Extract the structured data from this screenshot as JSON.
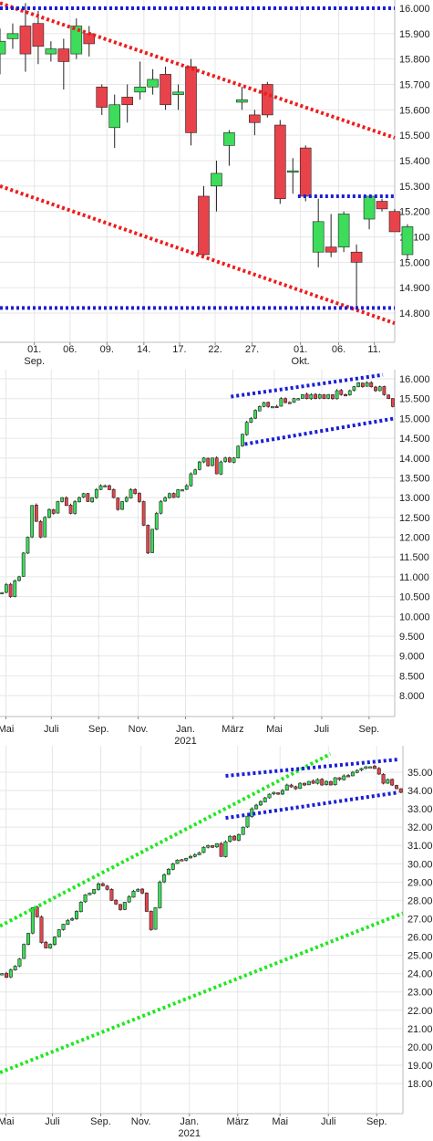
{
  "colors": {
    "up": "#3ddc5a",
    "down": "#e8434b",
    "wick": "#222222",
    "grid": "#e6e6e6",
    "trend_red": "#ee1c1c",
    "trend_blue": "#1a1fd6",
    "trend_green": "#22e622",
    "axis_text": "#222222"
  },
  "chart_data": [
    {
      "type": "candlestick",
      "title": "",
      "yticks": [
        "16.000",
        "15.900",
        "15.800",
        "15.700",
        "15.600",
        "15.500",
        "15.400",
        "15.300",
        "15.200",
        "15.100",
        "15.000",
        "14.900",
        "14.800"
      ],
      "ylim": [
        14.74,
        16.04
      ],
      "xlim": [
        0,
        31
      ],
      "xticks": [
        {
          "i": 2.7,
          "label": "01.",
          "sub": "Sep."
        },
        {
          "i": 5.5,
          "label": "06.",
          "sub": ""
        },
        {
          "i": 8.4,
          "label": "09.",
          "sub": ""
        },
        {
          "i": 11.3,
          "label": "14.",
          "sub": ""
        },
        {
          "i": 14.1,
          "label": "17.",
          "sub": ""
        },
        {
          "i": 16.9,
          "label": "22.",
          "sub": ""
        },
        {
          "i": 19.8,
          "label": "27.",
          "sub": ""
        },
        {
          "i": 23.6,
          "label": "01.",
          "sub": "Okt."
        },
        {
          "i": 26.6,
          "label": "06.",
          "sub": ""
        },
        {
          "i": 29.4,
          "label": "11.",
          "sub": ""
        }
      ],
      "candles": [
        {
          "o": 15.82,
          "h": 15.92,
          "l": 15.74,
          "c": 15.87
        },
        {
          "o": 15.88,
          "h": 15.94,
          "l": 15.84,
          "c": 15.9
        },
        {
          "o": 15.93,
          "h": 16.02,
          "l": 15.75,
          "c": 15.82
        },
        {
          "o": 15.94,
          "h": 15.99,
          "l": 15.78,
          "c": 15.85
        },
        {
          "o": 15.82,
          "h": 15.87,
          "l": 15.79,
          "c": 15.84
        },
        {
          "o": 15.84,
          "h": 15.88,
          "l": 15.68,
          "c": 15.79
        },
        {
          "o": 15.82,
          "h": 15.96,
          "l": 15.8,
          "c": 15.93
        },
        {
          "o": 15.9,
          "h": 15.93,
          "l": 15.81,
          "c": 15.86
        },
        {
          "o": 15.69,
          "h": 15.7,
          "l": 15.58,
          "c": 15.61
        },
        {
          "o": 15.53,
          "h": 15.66,
          "l": 15.45,
          "c": 15.62
        },
        {
          "o": 15.65,
          "h": 15.7,
          "l": 15.55,
          "c": 15.62
        },
        {
          "o": 15.67,
          "h": 15.79,
          "l": 15.64,
          "c": 15.69
        },
        {
          "o": 15.69,
          "h": 15.76,
          "l": 15.66,
          "c": 15.72
        },
        {
          "o": 15.74,
          "h": 15.77,
          "l": 15.6,
          "c": 15.62
        },
        {
          "o": 15.66,
          "h": 15.7,
          "l": 15.6,
          "c": 15.67
        },
        {
          "o": 15.77,
          "h": 15.8,
          "l": 15.46,
          "c": 15.51
        },
        {
          "o": 15.26,
          "h": 15.3,
          "l": 15.02,
          "c": 15.03
        },
        {
          "o": 15.3,
          "h": 15.4,
          "l": 15.2,
          "c": 15.35
        },
        {
          "o": 15.46,
          "h": 15.52,
          "l": 15.38,
          "c": 15.51
        },
        {
          "o": 15.63,
          "h": 15.69,
          "l": 15.6,
          "c": 15.64
        },
        {
          "o": 15.58,
          "h": 15.6,
          "l": 15.5,
          "c": 15.55
        },
        {
          "o": 15.7,
          "h": 15.71,
          "l": 15.57,
          "c": 15.58
        },
        {
          "o": 15.54,
          "h": 15.56,
          "l": 15.23,
          "c": 15.25
        },
        {
          "o": 15.36,
          "h": 15.41,
          "l": 15.27,
          "c": 15.36
        },
        {
          "o": 15.45,
          "h": 15.46,
          "l": 15.24,
          "c": 15.26
        },
        {
          "o": 15.04,
          "h": 15.25,
          "l": 14.98,
          "c": 15.16
        },
        {
          "o": 15.06,
          "h": 15.19,
          "l": 15.02,
          "c": 15.04
        },
        {
          "o": 15.06,
          "h": 15.2,
          "l": 15.04,
          "c": 15.19
        },
        {
          "o": 15.04,
          "h": 15.07,
          "l": 14.82,
          "c": 15.0
        },
        {
          "o": 15.17,
          "h": 15.26,
          "l": 15.13,
          "c": 15.26
        },
        {
          "o": 15.24,
          "h": 15.25,
          "l": 15.2,
          "c": 15.21
        },
        {
          "o": 15.2,
          "h": 15.21,
          "l": 15.12,
          "c": 15.12
        },
        {
          "o": 15.03,
          "h": 15.15,
          "l": 15.01,
          "c": 15.14
        }
      ],
      "trendlines": [
        {
          "color": "trend_red",
          "points": [
            [
              0,
              16.02
            ],
            [
              31,
              15.49
            ]
          ]
        },
        {
          "color": "trend_red",
          "points": [
            [
              0,
              15.3
            ],
            [
              31,
              14.76
            ]
          ]
        },
        {
          "color": "trend_blue",
          "points": [
            [
              0,
              16.0
            ],
            [
              31,
              16.0
            ]
          ]
        },
        {
          "color": "trend_blue",
          "points": [
            [
              0,
              14.82
            ],
            [
              31,
              14.82
            ]
          ]
        },
        {
          "color": "trend_blue",
          "points": [
            [
              23.4,
              15.26
            ],
            [
              31,
              15.26
            ]
          ]
        }
      ]
    },
    {
      "type": "candlestick",
      "title": "",
      "yticks": [
        "16.000",
        "15.500",
        "15.000",
        "14.500",
        "14.000",
        "13.500",
        "13.000",
        "12.500",
        "12.000",
        "11.500",
        "11.000",
        "10.500",
        "10.000",
        "9.500",
        "9.000",
        "8.500",
        "8.000"
      ],
      "ylim": [
        7.8,
        16.15
      ],
      "xlim": [
        0,
        100
      ],
      "xticks": [
        {
          "i": 1.5,
          "label": "Mai",
          "sub": ""
        },
        {
          "i": 13.0,
          "label": "Juli",
          "sub": ""
        },
        {
          "i": 25.0,
          "label": "Sep.",
          "sub": ""
        },
        {
          "i": 35.0,
          "label": "Nov.",
          "sub": ""
        },
        {
          "i": 47.0,
          "label": "Jan.",
          "sub": "2021"
        },
        {
          "i": 59.0,
          "label": "März",
          "sub": ""
        },
        {
          "i": 69.5,
          "label": "Mai",
          "sub": ""
        },
        {
          "i": 81.5,
          "label": "Juli",
          "sub": ""
        },
        {
          "i": 93.5,
          "label": "Sep.",
          "sub": ""
        }
      ],
      "closes": [
        10.6,
        10.8,
        10.5,
        10.9,
        11.0,
        11.6,
        12.0,
        12.8,
        12.4,
        12.0,
        12.5,
        12.7,
        12.6,
        12.9,
        13.0,
        12.8,
        12.6,
        12.9,
        13.0,
        13.1,
        12.9,
        13.0,
        13.2,
        13.3,
        13.3,
        13.2,
        13.0,
        12.7,
        12.9,
        13.0,
        13.2,
        13.1,
        12.9,
        12.3,
        11.6,
        12.2,
        12.6,
        12.9,
        13.0,
        13.1,
        13.0,
        13.2,
        13.2,
        13.3,
        13.6,
        13.7,
        13.9,
        14.0,
        13.8,
        14.0,
        13.6,
        13.9,
        14.0,
        13.9,
        14.0,
        14.3,
        14.6,
        14.9,
        15.0,
        15.2,
        15.3,
        15.4,
        15.3,
        15.3,
        15.3,
        15.5,
        15.4,
        15.4,
        15.5,
        15.5,
        15.6,
        15.5,
        15.6,
        15.5,
        15.6,
        15.5,
        15.6,
        15.5,
        15.7,
        15.6,
        15.6,
        15.7,
        15.8,
        15.9,
        15.8,
        15.9,
        15.8,
        15.7,
        15.8,
        15.6,
        15.5,
        15.3
      ],
      "trendlines": [
        {
          "color": "trend_blue",
          "points": [
            [
              58.5,
              15.55
            ],
            [
              97,
              16.1
            ]
          ]
        },
        {
          "color": "trend_blue",
          "points": [
            [
              62,
              14.35
            ],
            [
              100,
              15.0
            ]
          ]
        }
      ]
    },
    {
      "type": "candlestick",
      "title": "",
      "yticks": [
        "35.000",
        "34.000",
        "33.000",
        "32.000",
        "31.000",
        "30.000",
        "29.000",
        "28.000",
        "27.000",
        "26.000",
        "25.000",
        "24.000",
        "23.000",
        "22.000",
        "21.000",
        "20.000",
        "19.000",
        "18.000"
      ],
      "ylim": [
        17.2,
        36.0
      ],
      "xlim": [
        0,
        100
      ],
      "xticks": [
        {
          "i": 1.5,
          "label": "Mai",
          "sub": ""
        },
        {
          "i": 13.0,
          "label": "Juli",
          "sub": ""
        },
        {
          "i": 25.0,
          "label": "Sep.",
          "sub": ""
        },
        {
          "i": 35.0,
          "label": "Nov.",
          "sub": ""
        },
        {
          "i": 47.0,
          "label": "Jan.",
          "sub": "2021"
        },
        {
          "i": 59.0,
          "label": "März",
          "sub": ""
        },
        {
          "i": 69.5,
          "label": "Mai",
          "sub": ""
        },
        {
          "i": 81.5,
          "label": "Juli",
          "sub": ""
        },
        {
          "i": 93.5,
          "label": "Sep.",
          "sub": ""
        }
      ],
      "closes": [
        24.0,
        23.8,
        24.2,
        24.4,
        24.8,
        25.6,
        26.2,
        27.6,
        27.1,
        25.7,
        25.4,
        25.6,
        26.0,
        26.4,
        26.7,
        26.9,
        27.0,
        27.4,
        27.9,
        28.3,
        28.4,
        28.6,
        28.9,
        28.8,
        28.6,
        28.0,
        27.8,
        27.5,
        27.9,
        28.2,
        28.5,
        28.6,
        28.4,
        27.4,
        26.4,
        27.6,
        29.0,
        29.4,
        29.7,
        30.0,
        30.2,
        30.2,
        30.3,
        30.4,
        30.5,
        30.6,
        30.9,
        31.0,
        30.9,
        31.1,
        30.4,
        31.2,
        31.5,
        31.3,
        31.6,
        32.0,
        32.6,
        33.0,
        33.2,
        33.4,
        33.6,
        33.8,
        33.9,
        33.8,
        34.0,
        34.3,
        34.2,
        34.1,
        34.4,
        34.3,
        34.5,
        34.4,
        34.6,
        34.3,
        34.5,
        34.3,
        34.7,
        34.6,
        34.8,
        34.8,
        35.0,
        35.1,
        35.2,
        35.3,
        35.3,
        35.2,
        34.9,
        34.4,
        34.6,
        34.3,
        34.1,
        33.9
      ],
      "trendlines": [
        {
          "color": "trend_green",
          "points": [
            [
              0,
              26.6
            ],
            [
              82,
              36.0
            ]
          ]
        },
        {
          "color": "trend_green",
          "points": [
            [
              0,
              18.6
            ],
            [
              100,
              27.3
            ]
          ]
        },
        {
          "color": "trend_blue",
          "points": [
            [
              56,
              34.8
            ],
            [
              99,
              35.7
            ]
          ]
        },
        {
          "color": "trend_blue",
          "points": [
            [
              56,
              32.5
            ],
            [
              99,
              33.9
            ]
          ]
        }
      ]
    }
  ]
}
